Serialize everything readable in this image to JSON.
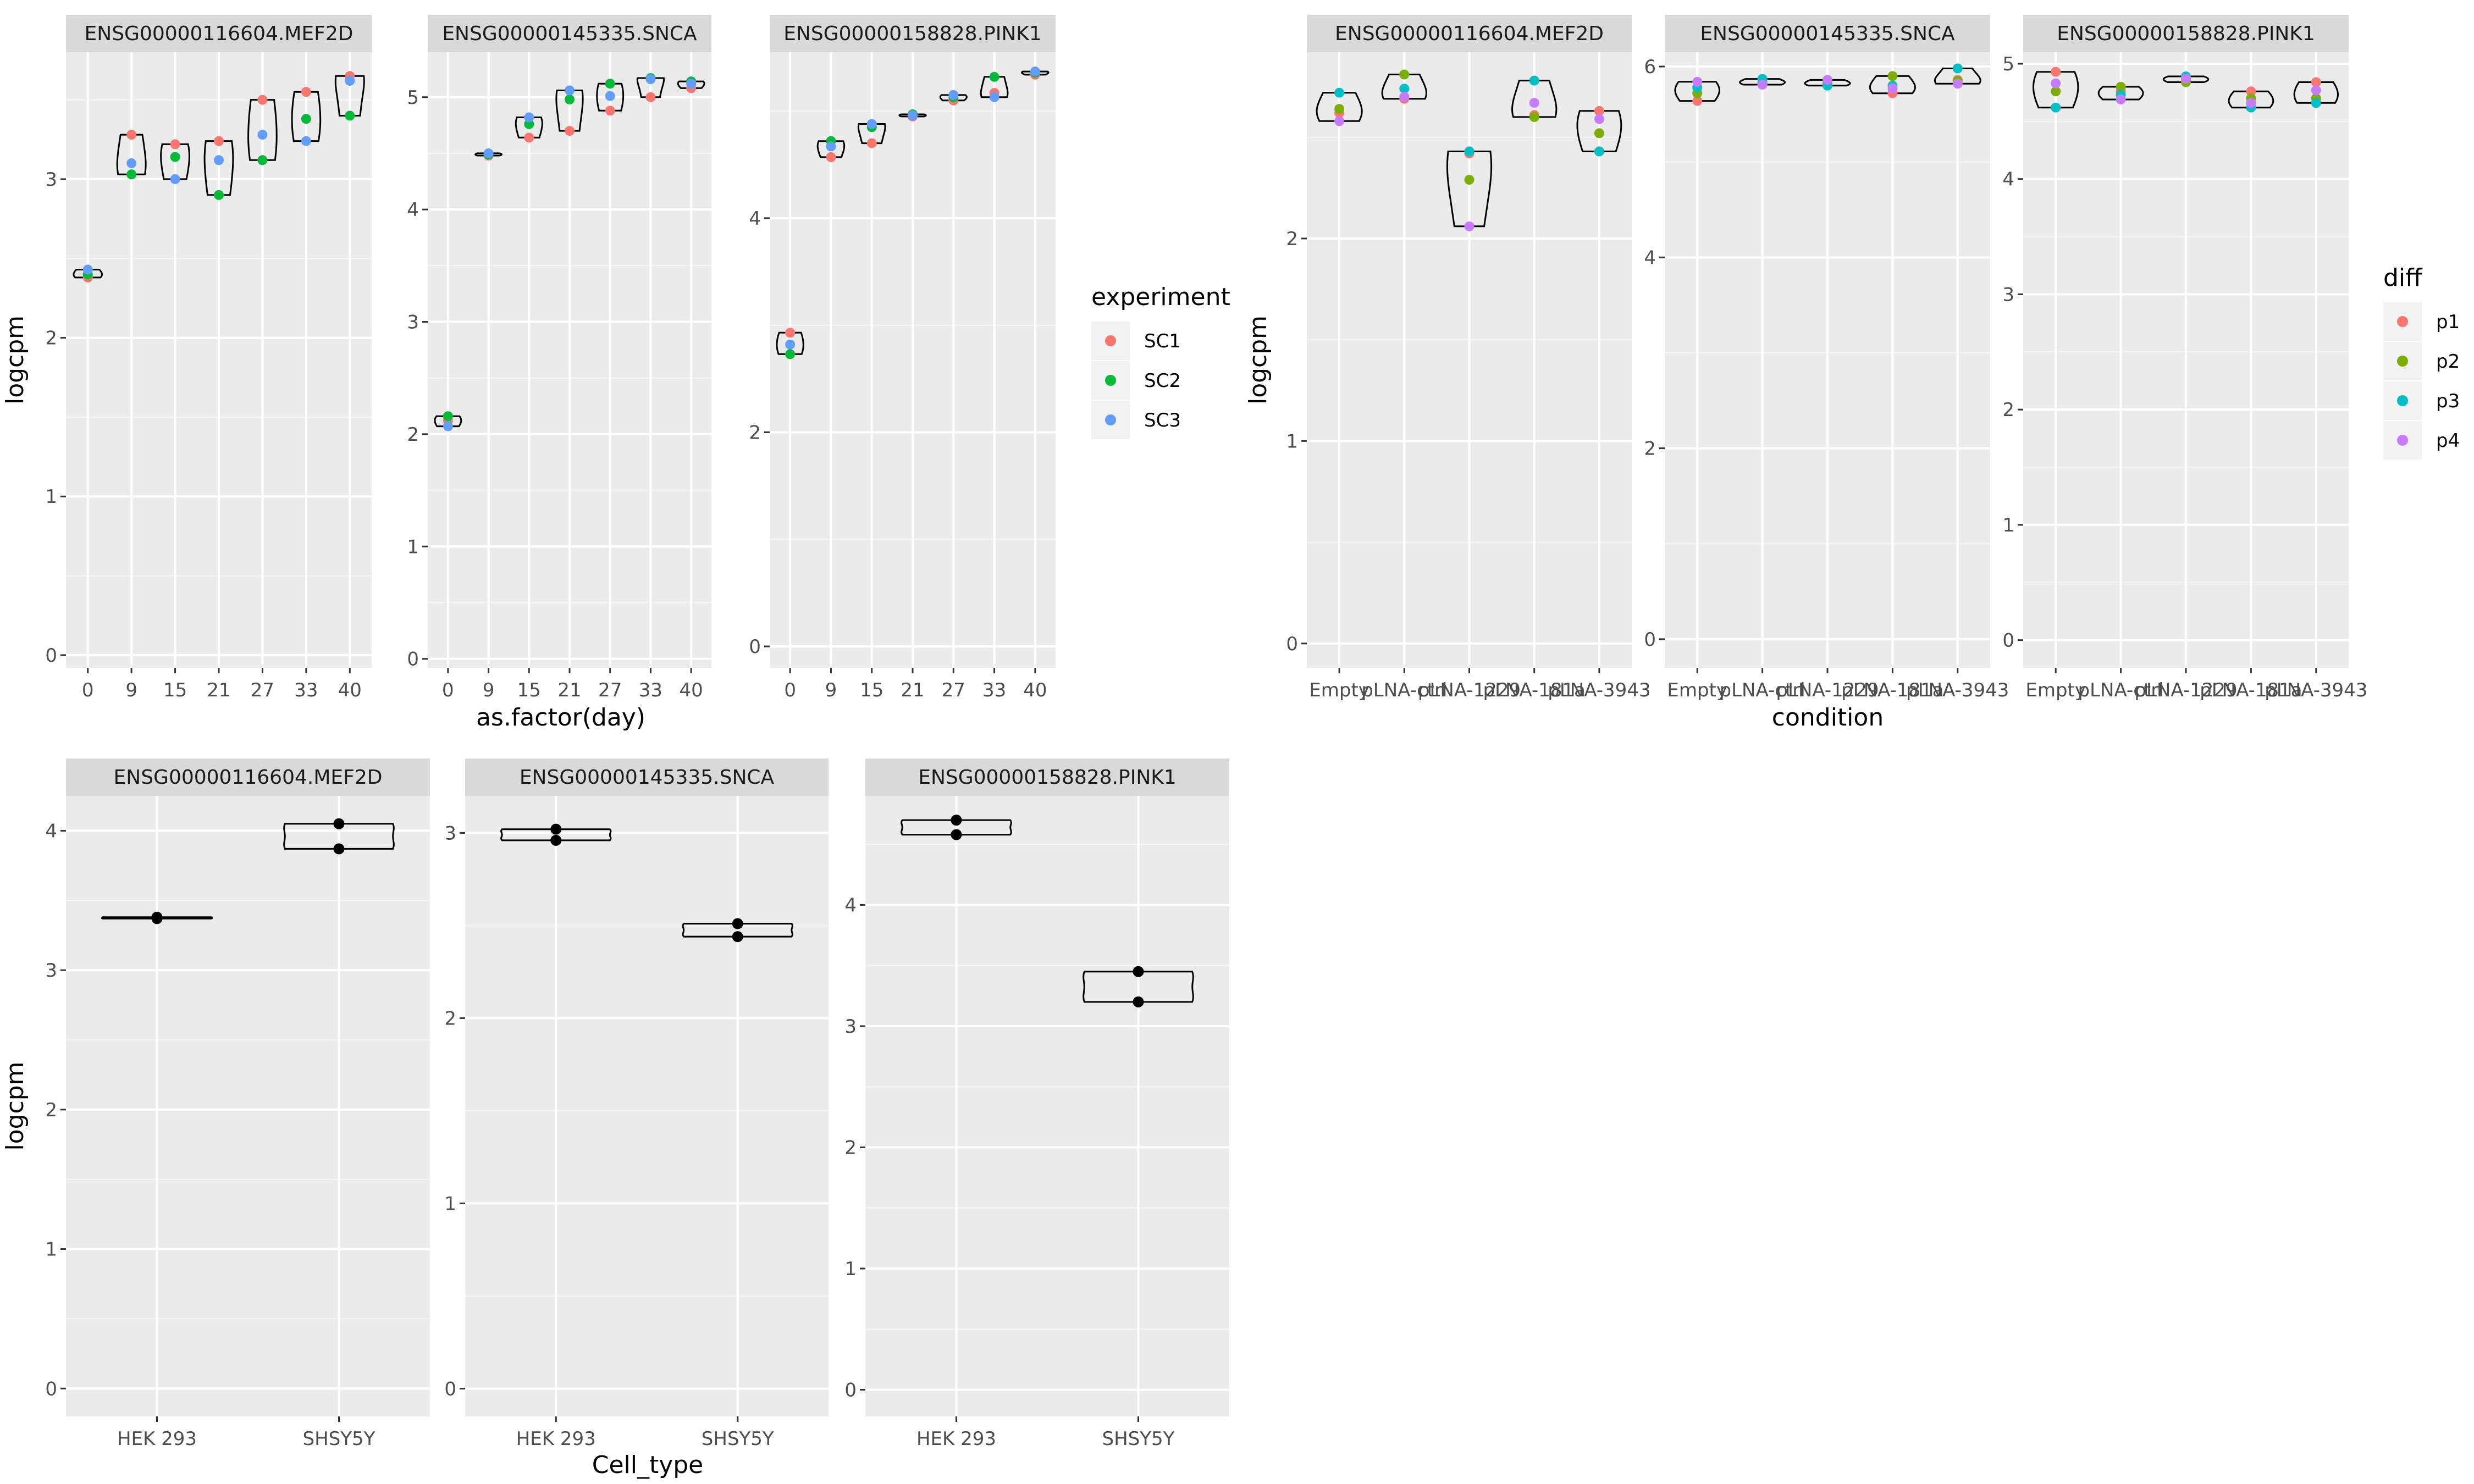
{
  "colors": {
    "panel_bg": "#EBEBEB",
    "strip_bg": "#D9D9D9",
    "grid_major": "#FFFFFF",
    "grid_minor": "#F5F5F5",
    "SC1": "#F8766D",
    "SC2": "#00BA38",
    "SC3": "#619CFF",
    "p1": "#F8766D",
    "p2": "#7CAE00",
    "p3": "#00BFC4",
    "p4": "#C77CFF",
    "black": "#000000"
  },
  "chart_data": [
    {
      "type": "violin",
      "id": "time",
      "xlabel": "as.factor(day)",
      "ylabel": "logcpm",
      "categories": [
        "0",
        "9",
        "15",
        "21",
        "27",
        "33",
        "40"
      ],
      "legend": {
        "title": "experiment",
        "placement": "right",
        "entries": [
          "SC1",
          "SC2",
          "SC3"
        ]
      },
      "facets": [
        {
          "title": "ENSG00000116604.MEF2D",
          "ylim": [
            -0.08,
            3.8
          ],
          "yticks": [
            0,
            1,
            2,
            3
          ],
          "series": [
            {
              "name": "SC1",
              "values": [
                2.38,
                3.28,
                3.22,
                3.24,
                3.5,
                3.55,
                3.65
              ]
            },
            {
              "name": "SC2",
              "values": [
                2.4,
                3.03,
                3.14,
                2.9,
                3.12,
                3.38,
                3.4
              ]
            },
            {
              "name": "SC3",
              "values": [
                2.43,
                3.1,
                3.0,
                3.12,
                3.28,
                3.24,
                3.62
              ]
            }
          ]
        },
        {
          "title": "ENSG00000145335.SNCA",
          "ylim": [
            -0.08,
            5.4
          ],
          "yticks": [
            0,
            1,
            2,
            3,
            4,
            5
          ],
          "series": [
            {
              "name": "SC1",
              "values": [
                2.12,
                4.48,
                4.64,
                4.7,
                4.88,
                5.0,
                5.08
              ]
            },
            {
              "name": "SC2",
              "values": [
                2.16,
                4.49,
                4.76,
                4.98,
                5.12,
                5.17,
                5.14
              ]
            },
            {
              "name": "SC3",
              "values": [
                2.07,
                4.5,
                4.82,
                5.06,
                5.01,
                5.16,
                5.12
              ]
            }
          ]
        },
        {
          "title": "ENSG00000158828.PINK1",
          "ylim": [
            -0.2,
            5.55
          ],
          "yticks": [
            0,
            2,
            4
          ],
          "series": [
            {
              "name": "SC1",
              "values": [
                2.93,
                4.57,
                4.7,
                4.95,
                5.1,
                5.17,
                5.34
              ]
            },
            {
              "name": "SC2",
              "values": [
                2.73,
                4.72,
                4.85,
                4.97,
                5.13,
                5.32,
                5.36
              ]
            },
            {
              "name": "SC3",
              "values": [
                2.82,
                4.67,
                4.88,
                4.96,
                5.15,
                5.13,
                5.37
              ]
            }
          ]
        }
      ]
    },
    {
      "type": "violin",
      "id": "condition",
      "xlabel": "condition",
      "ylabel": "logcpm",
      "categories": [
        "Empty",
        "pLNA-ctrl",
        "pLNA-1229",
        "pLNA-181a",
        "pLNA-3943"
      ],
      "legend": {
        "title": "diff",
        "placement": "right",
        "entries": [
          "p1",
          "p2",
          "p3",
          "p4"
        ]
      },
      "facets": [
        {
          "title": "ENSG00000116604.MEF2D",
          "ylim": [
            -0.12,
            2.92
          ],
          "yticks": [
            0,
            1,
            2
          ],
          "series": [
            {
              "name": "p1",
              "values": [
                2.62,
                2.69,
                2.42,
                2.61,
                2.63
              ]
            },
            {
              "name": "p2",
              "values": [
                2.64,
                2.81,
                2.29,
                2.6,
                2.52
              ]
            },
            {
              "name": "p3",
              "values": [
                2.72,
                2.74,
                2.43,
                2.78,
                2.43
              ]
            },
            {
              "name": "p4",
              "values": [
                2.58,
                2.7,
                2.06,
                2.67,
                2.59
              ]
            }
          ]
        },
        {
          "title": "ENSG00000145335.SNCA",
          "ylim": [
            -0.3,
            6.15
          ],
          "yticks": [
            0,
            2,
            4,
            6
          ],
          "series": [
            {
              "name": "p1",
              "values": [
                5.64,
                5.83,
                5.82,
                5.72,
                5.86
              ]
            },
            {
              "name": "p2",
              "values": [
                5.72,
                5.84,
                5.83,
                5.9,
                5.85
              ]
            },
            {
              "name": "p3",
              "values": [
                5.78,
                5.87,
                5.8,
                5.8,
                5.98
              ]
            },
            {
              "name": "p4",
              "values": [
                5.84,
                5.81,
                5.86,
                5.77,
                5.82
              ]
            }
          ]
        },
        {
          "title": "ENSG00000158828.PINK1",
          "ylim": [
            -0.24,
            5.1
          ],
          "yticks": [
            0,
            1,
            2,
            3,
            4,
            5
          ],
          "series": [
            {
              "name": "p1",
              "values": [
                4.93,
                4.76,
                4.86,
                4.76,
                4.84
              ]
            },
            {
              "name": "p2",
              "values": [
                4.76,
                4.8,
                4.84,
                4.7,
                4.7
              ]
            },
            {
              "name": "p3",
              "values": [
                4.62,
                4.73,
                4.89,
                4.62,
                4.66
              ]
            },
            {
              "name": "p4",
              "values": [
                4.83,
                4.69,
                4.87,
                4.66,
                4.77
              ]
            }
          ]
        }
      ]
    },
    {
      "type": "violin",
      "id": "celltype",
      "xlabel": "Cell_type",
      "ylabel": "logcpm",
      "categories": [
        "HEK 293",
        "SHSY5Y"
      ],
      "legend": null,
      "facets": [
        {
          "title": "ENSG00000116604.MEF2D",
          "ylim": [
            -0.2,
            4.25
          ],
          "yticks": [
            0,
            1,
            2,
            3,
            4
          ],
          "groups": [
            [
              3.37,
              3.38
            ],
            [
              3.87,
              4.05
            ]
          ]
        },
        {
          "title": "ENSG00000145335.SNCA",
          "ylim": [
            -0.15,
            3.2
          ],
          "yticks": [
            0,
            1,
            2,
            3
          ],
          "groups": [
            [
              2.96,
              3.02
            ],
            [
              2.44,
              2.51
            ]
          ]
        },
        {
          "title": "ENSG00000158828.PINK1",
          "ylim": [
            -0.22,
            4.9
          ],
          "yticks": [
            0,
            1,
            2,
            3,
            4
          ],
          "groups": [
            [
              4.58,
              4.7
            ],
            [
              3.2,
              3.45
            ]
          ]
        }
      ]
    }
  ]
}
